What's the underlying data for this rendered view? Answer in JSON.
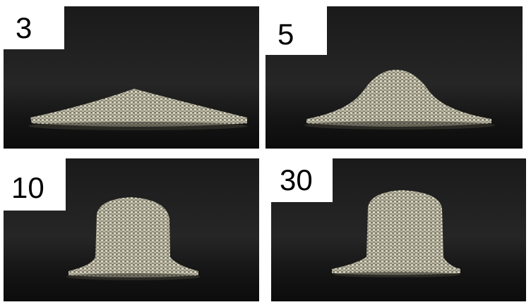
{
  "panels": [
    {
      "label": "3"
    },
    {
      "label": "5"
    },
    {
      "label": "10"
    },
    {
      "label": "30"
    }
  ]
}
